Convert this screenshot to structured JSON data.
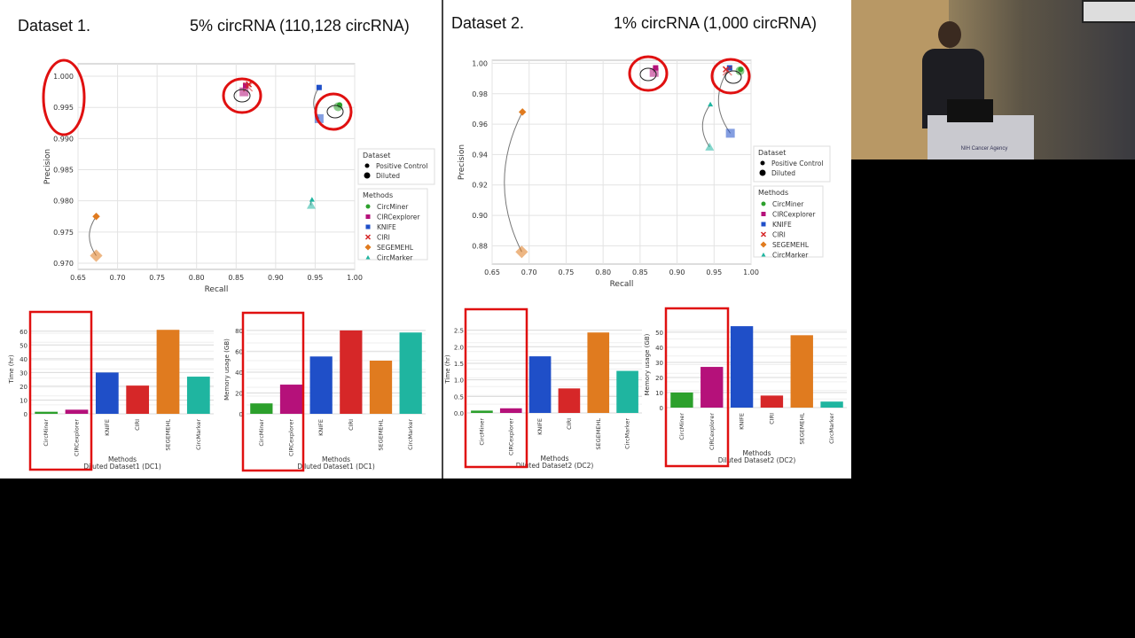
{
  "slide": {
    "left_title": "Dataset 1.",
    "left_subtitle": "5% circRNA (110,128 circRNA)",
    "right_title": "Dataset 2.",
    "right_subtitle": "1% circRNA (1,000 circRNA)"
  },
  "colors": {
    "CircMiner": "#2ca02c",
    "CIRCexplorer": "#b5117a",
    "KNIFE": "#1f4fc8",
    "CIRI": "#d62728",
    "SEGEMEHL": "#e07b1f",
    "CircMarker": "#1fb5a0",
    "highlight": "#e01010"
  },
  "video": {
    "podium_label": "NIH Cancer Agency"
  },
  "chart_data": [
    {
      "id": "scatter1",
      "type": "scatter",
      "xlabel": "Recall",
      "ylabel": "Precision",
      "xlim": [
        0.65,
        1.0
      ],
      "ylim": [
        0.969,
        1.002
      ],
      "xticks": [
        "0.65",
        "0.70",
        "0.75",
        "0.80",
        "0.85",
        "0.90",
        "0.95",
        "1.00"
      ],
      "yticks": [
        "0.970",
        "0.975",
        "0.980",
        "0.985",
        "0.990",
        "0.995",
        "1.000"
      ],
      "grid": true,
      "legend_dataset_title": "Dataset",
      "legend_dataset": [
        "Positive Control",
        "Diluted"
      ],
      "legend_methods_title": "Methods",
      "legend_methods": [
        "CircMiner",
        "CIRCexplorer",
        "KNIFE",
        "CIRI",
        "SEGEMEHL",
        "CircMarker"
      ],
      "series": [
        {
          "name": "CircMiner",
          "pc": [
            0.981,
            0.9954
          ],
          "diluted": [
            0.979,
            0.9951
          ]
        },
        {
          "name": "CIRCexplorer",
          "pc": [
            0.862,
            0.9985
          ],
          "diluted": [
            0.86,
            0.9975
          ]
        },
        {
          "name": "KNIFE",
          "pc": [
            0.955,
            0.9982
          ],
          "diluted": [
            0.955,
            0.9932
          ]
        },
        {
          "name": "CIRI",
          "pc": [
            0.866,
            0.9987
          ],
          "diluted": [
            0.865,
            0.9983
          ]
        },
        {
          "name": "SEGEMEHL",
          "pc": [
            0.673,
            0.9775
          ],
          "diluted": [
            0.673,
            0.9712
          ]
        },
        {
          "name": "CircMarker",
          "pc": [
            0.946,
            0.9802
          ],
          "diluted": [
            0.945,
            0.9793
          ]
        }
      ]
    },
    {
      "id": "scatter2",
      "type": "scatter",
      "xlabel": "Recall",
      "ylabel": "Precision",
      "xlim": [
        0.65,
        1.0
      ],
      "ylim": [
        0.868,
        1.002
      ],
      "xticks": [
        "0.65",
        "0.70",
        "0.75",
        "0.80",
        "0.85",
        "0.90",
        "0.95",
        "1.00"
      ],
      "yticks": [
        "0.88",
        "0.90",
        "0.92",
        "0.94",
        "0.96",
        "0.98",
        "1.00"
      ],
      "grid": true,
      "legend_dataset_title": "Dataset",
      "legend_dataset": [
        "Positive Control",
        "Diluted"
      ],
      "legend_methods_title": "Methods",
      "legend_methods": [
        "CircMiner",
        "CIRCexplorer",
        "KNIFE",
        "CIRI",
        "SEGEMEHL",
        "CircMarker"
      ],
      "series": [
        {
          "name": "CircMiner",
          "pc": [
            0.986,
            0.996
          ],
          "diluted": [
            0.985,
            0.995
          ]
        },
        {
          "name": "CIRCexplorer",
          "pc": [
            0.871,
            0.997
          ],
          "diluted": [
            0.869,
            0.994
          ]
        },
        {
          "name": "KNIFE",
          "pc": [
            0.971,
            0.997
          ],
          "diluted": [
            0.972,
            0.954
          ]
        },
        {
          "name": "CIRI",
          "pc": [
            0.966,
            0.996
          ],
          "diluted": [
            0.968,
            0.995
          ]
        },
        {
          "name": "SEGEMEHL",
          "pc": [
            0.691,
            0.968
          ],
          "diluted": [
            0.69,
            0.876
          ]
        },
        {
          "name": "CircMarker",
          "pc": [
            0.945,
            0.973
          ],
          "diluted": [
            0.944,
            0.945
          ]
        }
      ]
    },
    {
      "id": "bar1",
      "type": "bar",
      "ylabel": "Time (hr)",
      "xlabel": "Methods",
      "caption": "Diluted Dataset1 (DC1)",
      "ylim": [
        0,
        65
      ],
      "yticks": [
        "0",
        "10",
        "20",
        "30",
        "40",
        "50",
        "60"
      ],
      "categories": [
        "CircMiner",
        "CIRCexplorer",
        "KNIFE",
        "CIRI",
        "SEGEMEHL",
        "CircMarker"
      ],
      "values": [
        1.5,
        3,
        30,
        20.5,
        61,
        27
      ]
    },
    {
      "id": "bar2",
      "type": "bar",
      "ylabel": "Memory usage (GB)",
      "xlabel": "Methods",
      "caption": "Diluted Dataset1 (DC1)",
      "ylim": [
        0,
        85
      ],
      "yticks": [
        "0",
        "20",
        "40",
        "60",
        "80"
      ],
      "categories": [
        "CircMiner",
        "CIRCexplorer",
        "KNIFE",
        "CIRI",
        "SEGEMEHL",
        "CircMarker"
      ],
      "values": [
        10,
        28,
        55,
        80,
        51,
        78
      ]
    },
    {
      "id": "bar3",
      "type": "bar",
      "ylabel": "Time (hr)",
      "xlabel": "Methods",
      "caption": "Diluted Dataset2 (DC2)",
      "ylim": [
        0,
        2.65
      ],
      "yticks": [
        "0.0",
        "0.5",
        "1.0",
        "1.5",
        "2.0",
        "2.5"
      ],
      "categories": [
        "CircMiner",
        "CIRCexplorer",
        "KNIFE",
        "CIRI",
        "SEGEMEHL",
        "CircMarker"
      ],
      "values": [
        0.07,
        0.14,
        1.71,
        0.74,
        2.43,
        1.27
      ]
    },
    {
      "id": "bar4",
      "type": "bar",
      "ylabel": "Memory usage (GB)",
      "xlabel": "Methods",
      "caption": "Diluted Dataset2 (DC2)",
      "ylim": [
        0,
        57
      ],
      "yticks": [
        "0",
        "10",
        "20",
        "30",
        "40",
        "50"
      ],
      "categories": [
        "CircMiner",
        "CIRCexplorer",
        "KNIFE",
        "CIRI",
        "SEGEMEHL",
        "CircMarker"
      ],
      "values": [
        10,
        27,
        54,
        8,
        48,
        4
      ]
    }
  ]
}
